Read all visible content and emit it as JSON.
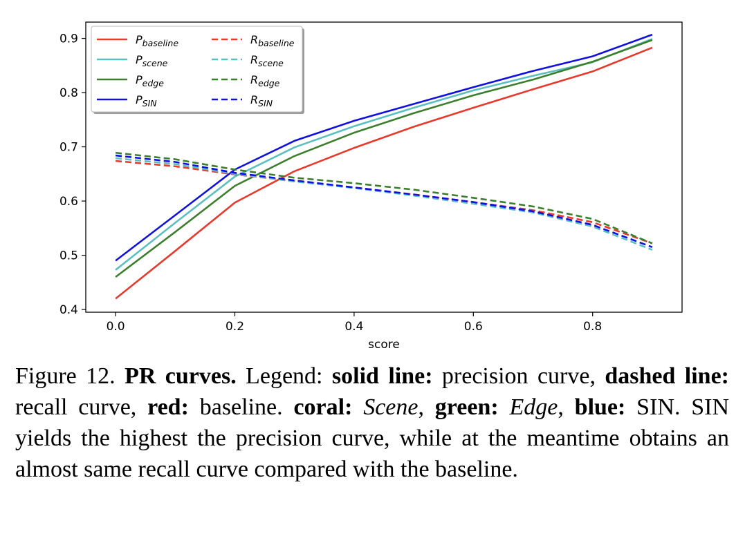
{
  "chart_data": {
    "type": "line",
    "title": "",
    "xlabel": "score",
    "ylabel": "",
    "xlim": [
      -0.05,
      0.95
    ],
    "ylim": [
      0.395,
      0.93
    ],
    "x_ticks": [
      "0.0",
      "0.2",
      "0.4",
      "0.6",
      "0.8"
    ],
    "y_ticks": [
      "0.4",
      "0.5",
      "0.6",
      "0.7",
      "0.8",
      "0.9"
    ],
    "grid": false,
    "legend_placement": "top-left",
    "x": [
      0.0,
      0.1,
      0.2,
      0.3,
      0.4,
      0.5,
      0.6,
      0.7,
      0.8,
      0.9
    ],
    "series": [
      {
        "name": "P",
        "subscript": "baseline",
        "color": "#e8392c",
        "dashed": false,
        "values": [
          0.42,
          0.508,
          0.597,
          0.655,
          0.698,
          0.737,
          0.772,
          0.806,
          0.839,
          0.883
        ]
      },
      {
        "name": "P",
        "subscript": "scene",
        "color": "#5bbfc0",
        "dashed": false,
        "values": [
          0.473,
          0.56,
          0.645,
          0.699,
          0.738,
          0.772,
          0.804,
          0.831,
          0.856,
          0.899
        ]
      },
      {
        "name": "P",
        "subscript": "edge",
        "color": "#3b7f2c",
        "dashed": false,
        "values": [
          0.46,
          0.543,
          0.628,
          0.683,
          0.726,
          0.762,
          0.795,
          0.824,
          0.857,
          0.897
        ]
      },
      {
        "name": "P",
        "subscript": "SIN",
        "color": "#1010e0",
        "dashed": false,
        "values": [
          0.49,
          0.574,
          0.658,
          0.711,
          0.748,
          0.779,
          0.81,
          0.84,
          0.867,
          0.907
        ]
      },
      {
        "name": "R",
        "subscript": "baseline",
        "color": "#e8392c",
        "dashed": true,
        "values": [
          0.674,
          0.664,
          0.649,
          0.637,
          0.625,
          0.612,
          0.598,
          0.583,
          0.561,
          0.522
        ]
      },
      {
        "name": "R",
        "subscript": "scene",
        "color": "#5bbfc0",
        "dashed": true,
        "values": [
          0.679,
          0.668,
          0.65,
          0.636,
          0.624,
          0.61,
          0.595,
          0.579,
          0.553,
          0.51
        ]
      },
      {
        "name": "R",
        "subscript": "edge",
        "color": "#3b7f2c",
        "dashed": true,
        "values": [
          0.689,
          0.677,
          0.658,
          0.643,
          0.633,
          0.621,
          0.606,
          0.59,
          0.567,
          0.522
        ]
      },
      {
        "name": "R",
        "subscript": "SIN",
        "color": "#1010e0",
        "dashed": true,
        "values": [
          0.684,
          0.672,
          0.652,
          0.638,
          0.625,
          0.612,
          0.598,
          0.581,
          0.556,
          0.515
        ]
      }
    ]
  },
  "caption": {
    "figure_label": "Figure 12.",
    "title": "PR curves.",
    "t1": " Legend: ",
    "b1": "solid line:",
    "t2": " precision curve, ",
    "b2": "dashed line:",
    "t3": " recall curve, ",
    "b3": "red:",
    "t4": " baseline. ",
    "b4": "coral:",
    "i1": "Scene",
    "t5": ", ",
    "b5": "green:",
    "i2": "Edge",
    "t6": ", ",
    "b6": "blue:",
    "t7": " SIN. SIN yields the highest the precision curve, while at the meantime obtains an almost same recall curve compared with the baseline."
  }
}
